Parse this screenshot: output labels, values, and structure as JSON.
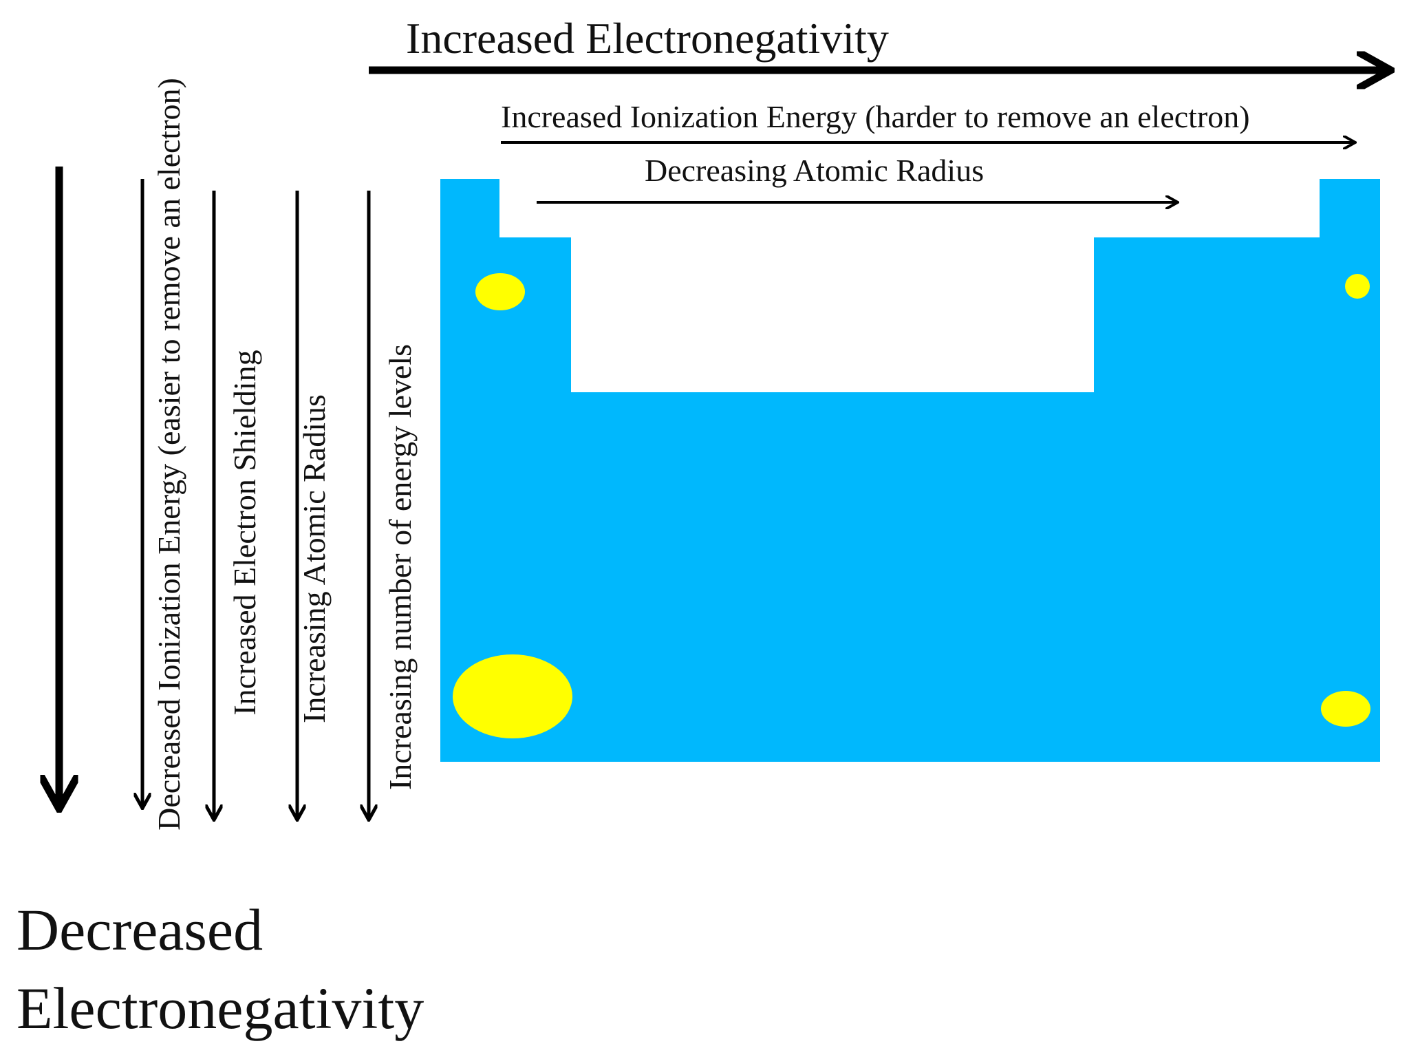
{
  "title": {
    "horizontal": "Increased Electronegativity",
    "vertical_line1": "Decreased",
    "vertical_line2": "Electronegativity"
  },
  "row_trends": {
    "ionization_energy": "Increased Ionization Energy (harder to remove an electron)",
    "atomic_radius": "Decreasing Atomic Radius"
  },
  "column_trends": {
    "ionization_energy": "Decreased Ionization Energy (easier to remove an electron)",
    "electron_shielding": "Increased Electron Shielding",
    "atomic_radius": "Increasing Atomic Radius",
    "energy_levels": "Increasing number of energy levels"
  },
  "colors": {
    "table_fill": "#00b8fd",
    "atom_fill": "#ffff00",
    "arrow": "#000000",
    "background": "#ffffff"
  }
}
